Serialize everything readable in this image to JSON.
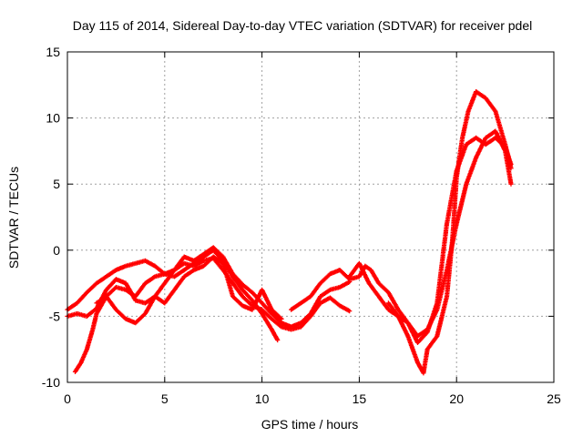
{
  "chart_data": {
    "type": "scatter",
    "title": "Day 115 of 2014, Sidereal Day-to-day VTEC variation (SDTVAR) for receiver pdel",
    "xlabel": "GPS time / hours",
    "ylabel": "SDTVAR / TECUs",
    "xlim": [
      0,
      25
    ],
    "ylim": [
      -10,
      15
    ],
    "xticks": [
      0,
      5,
      10,
      15,
      20,
      25
    ],
    "yticks": [
      -10,
      -5,
      0,
      5,
      10,
      15
    ],
    "grid": true,
    "legend": "none",
    "marker": "plus",
    "series": [
      {
        "color": "#ff0000",
        "tracks": [
          [
            [
              0.0,
              -5.0
            ],
            [
              0.5,
              -4.8
            ],
            [
              1.0,
              -5.0
            ],
            [
              1.5,
              -4.4
            ],
            [
              2.0,
              -3.0
            ],
            [
              2.5,
              -2.2
            ],
            [
              3.0,
              -2.5
            ],
            [
              3.5,
              -3.8
            ],
            [
              4.0,
              -4.0
            ],
            [
              4.5,
              -3.5
            ],
            [
              5.0,
              -2.5
            ],
            [
              5.5,
              -1.5
            ],
            [
              6.0,
              -0.5
            ],
            [
              6.5,
              -0.8
            ],
            [
              7.0,
              -0.3
            ],
            [
              7.5,
              0.2
            ],
            [
              8.0,
              -0.5
            ],
            [
              8.5,
              -1.8
            ],
            [
              9.0,
              -2.6
            ],
            [
              9.5,
              -3.2
            ],
            [
              10.0,
              -4.0
            ],
            [
              10.5,
              -4.8
            ],
            [
              11.0,
              -5.5
            ],
            [
              11.5,
              -5.8
            ],
            [
              12.0,
              -5.5
            ],
            [
              12.5,
              -4.8
            ],
            [
              13.0,
              -3.5
            ],
            [
              13.5,
              -3.0
            ],
            [
              14.0,
              -2.8
            ],
            [
              14.5,
              -2.4
            ]
          ],
          [
            [
              0.4,
              -9.2
            ],
            [
              0.7,
              -8.5
            ],
            [
              1.0,
              -7.5
            ],
            [
              1.3,
              -6.0
            ],
            [
              1.5,
              -4.8
            ],
            [
              2.0,
              -3.5
            ],
            [
              2.5,
              -2.8
            ],
            [
              3.0,
              -3.0
            ],
            [
              3.5,
              -3.5
            ],
            [
              4.0,
              -2.5
            ],
            [
              4.5,
              -2.0
            ],
            [
              5.0,
              -1.8
            ],
            [
              5.5,
              -1.5
            ],
            [
              6.0,
              -1.0
            ],
            [
              6.5,
              -1.2
            ],
            [
              7.0,
              -0.8
            ],
            [
              7.5,
              -0.6
            ],
            [
              8.0,
              -1.5
            ],
            [
              8.5,
              -2.5
            ],
            [
              9.0,
              -3.5
            ],
            [
              9.5,
              -4.2
            ],
            [
              10.0,
              -4.5
            ],
            [
              10.5,
              -5.2
            ],
            [
              11.0,
              -5.8
            ],
            [
              11.5,
              -6.0
            ],
            [
              12.0,
              -5.8
            ],
            [
              12.5,
              -5.0
            ],
            [
              13.0,
              -4.0
            ],
            [
              13.5,
              -3.6
            ],
            [
              14.0,
              -4.2
            ],
            [
              14.5,
              -4.6
            ]
          ],
          [
            [
              0.0,
              -4.5
            ],
            [
              0.5,
              -4.0
            ],
            [
              1.0,
              -3.2
            ],
            [
              1.5,
              -2.5
            ],
            [
              2.0,
              -2.0
            ],
            [
              2.5,
              -1.5
            ],
            [
              3.0,
              -1.2
            ],
            [
              3.5,
              -1.0
            ],
            [
              4.0,
              -0.8
            ],
            [
              4.5,
              -1.2
            ],
            [
              5.0,
              -1.8
            ],
            [
              5.5,
              -2.0
            ],
            [
              6.0,
              -1.5
            ],
            [
              6.5,
              -1.0
            ],
            [
              7.0,
              -0.5
            ],
            [
              7.5,
              0.0
            ],
            [
              8.0,
              -0.8
            ],
            [
              8.5,
              -2.0
            ],
            [
              9.0,
              -3.0
            ],
            [
              9.5,
              -3.8
            ],
            [
              10.0,
              -4.8
            ],
            [
              10.5,
              -6.0
            ],
            [
              10.8,
              -6.8
            ]
          ],
          [
            [
              1.5,
              -4.0
            ],
            [
              2.0,
              -3.5
            ],
            [
              2.5,
              -4.5
            ],
            [
              3.0,
              -5.2
            ],
            [
              3.5,
              -5.5
            ],
            [
              4.0,
              -4.8
            ],
            [
              4.5,
              -3.5
            ],
            [
              5.0,
              -4.0
            ],
            [
              5.5,
              -3.0
            ],
            [
              6.0,
              -2.0
            ],
            [
              6.5,
              -1.5
            ],
            [
              7.0,
              -1.2
            ],
            [
              7.5,
              -0.5
            ],
            [
              8.0,
              -1.0
            ],
            [
              8.5,
              -3.5
            ],
            [
              9.0,
              -4.2
            ],
            [
              9.5,
              -4.5
            ],
            [
              10.0,
              -3.0
            ],
            [
              10.5,
              -4.5
            ],
            [
              11.0,
              -5.2
            ]
          ],
          [
            [
              11.5,
              -4.5
            ],
            [
              12.0,
              -4.0
            ],
            [
              12.5,
              -3.5
            ],
            [
              13.0,
              -2.5
            ],
            [
              13.5,
              -1.8
            ],
            [
              14.0,
              -1.5
            ],
            [
              14.5,
              -2.2
            ],
            [
              15.0,
              -2.0
            ],
            [
              15.3,
              -1.2
            ],
            [
              15.6,
              -1.5
            ],
            [
              16.0,
              -2.5
            ],
            [
              16.5,
              -3.2
            ],
            [
              17.0,
              -4.5
            ],
            [
              17.5,
              -5.5
            ],
            [
              18.0,
              -6.5
            ],
            [
              18.5,
              -6.0
            ],
            [
              19.0,
              -4.5
            ],
            [
              19.5,
              -1.5
            ],
            [
              20.0,
              2.0
            ],
            [
              20.5,
              5.0
            ],
            [
              21.0,
              7.0
            ],
            [
              21.5,
              8.5
            ],
            [
              22.0,
              9.0
            ],
            [
              22.5,
              7.5
            ],
            [
              22.8,
              5.0
            ]
          ],
          [
            [
              14.5,
              -2.0
            ],
            [
              15.0,
              -1.0
            ],
            [
              15.5,
              -2.5
            ],
            [
              16.0,
              -3.5
            ],
            [
              16.5,
              -4.5
            ],
            [
              17.0,
              -5.0
            ],
            [
              17.5,
              -5.5
            ],
            [
              18.0,
              -7.0
            ],
            [
              18.5,
              -6.2
            ],
            [
              19.0,
              -4.0
            ],
            [
              19.5,
              2.0
            ],
            [
              20.0,
              6.0
            ],
            [
              20.5,
              8.0
            ],
            [
              21.0,
              8.5
            ],
            [
              21.5,
              8.0
            ],
            [
              22.0,
              8.5
            ],
            [
              22.5,
              7.8
            ],
            [
              22.8,
              6.5
            ]
          ],
          [
            [
              16.5,
              -4.0
            ],
            [
              17.0,
              -5.0
            ],
            [
              17.5,
              -6.5
            ],
            [
              18.0,
              -8.5
            ],
            [
              18.3,
              -9.3
            ],
            [
              18.5,
              -7.5
            ],
            [
              19.0,
              -6.5
            ],
            [
              19.5,
              -3.5
            ],
            [
              19.8,
              1.0
            ],
            [
              20.0,
              5.5
            ],
            [
              20.3,
              8.5
            ],
            [
              20.6,
              10.5
            ],
            [
              21.0,
              12.0
            ],
            [
              21.5,
              11.5
            ],
            [
              22.0,
              10.5
            ],
            [
              22.5,
              8.0
            ],
            [
              22.8,
              6.2
            ]
          ]
        ]
      }
    ]
  }
}
